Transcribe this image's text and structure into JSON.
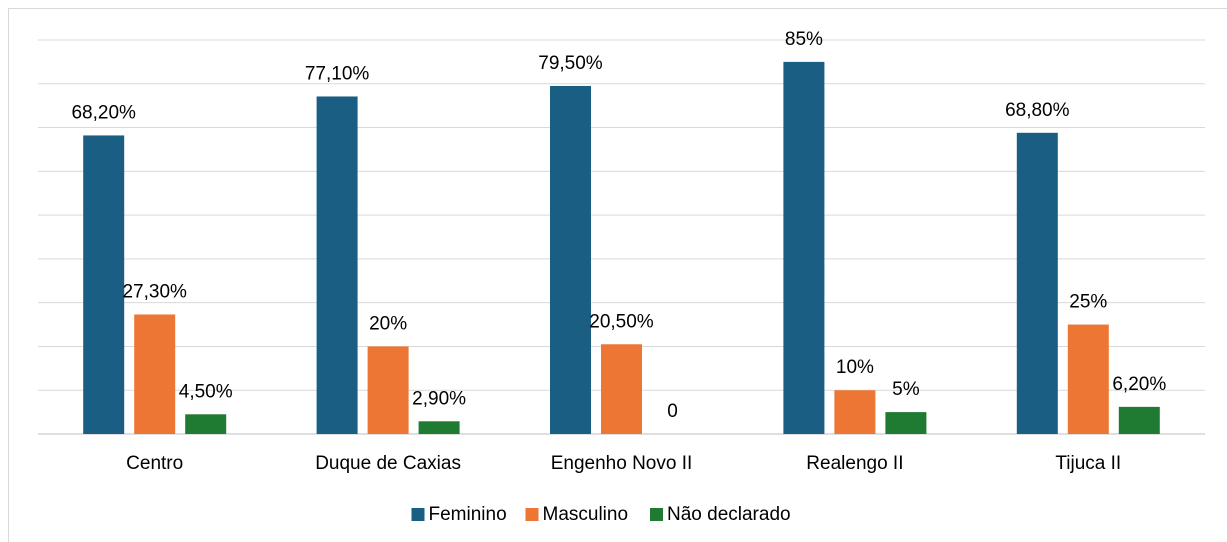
{
  "chart_data": {
    "type": "bar",
    "categories": [
      "Centro",
      "Duque de Caxias",
      "Engenho Novo II",
      "Realengo II",
      "Tijuca II"
    ],
    "series": [
      {
        "name": "Feminino",
        "color": "#1a5e83",
        "values": [
          68.2,
          77.1,
          79.5,
          85,
          68.8
        ],
        "value_labels": [
          "68,20%",
          "77,10%",
          "79,50%",
          "85%",
          "68,80%"
        ]
      },
      {
        "name": "Masculino",
        "color": "#ed7634",
        "values": [
          27.3,
          20,
          20.5,
          10,
          25
        ],
        "value_labels": [
          "27,30%",
          "20%",
          "20,50%",
          "10%",
          "25%"
        ]
      },
      {
        "name": "Não declarado",
        "color": "#1f7a32",
        "values": [
          4.5,
          2.9,
          0,
          5,
          6.2
        ],
        "value_labels": [
          "4,50%",
          "2,90%",
          "0",
          "5%",
          "6,20%"
        ]
      }
    ],
    "ylim": [
      0,
      90
    ],
    "yticks": [
      0,
      10,
      20,
      30,
      40,
      50,
      60,
      70,
      80,
      90
    ],
    "grid": true,
    "legend": "bottom"
  }
}
